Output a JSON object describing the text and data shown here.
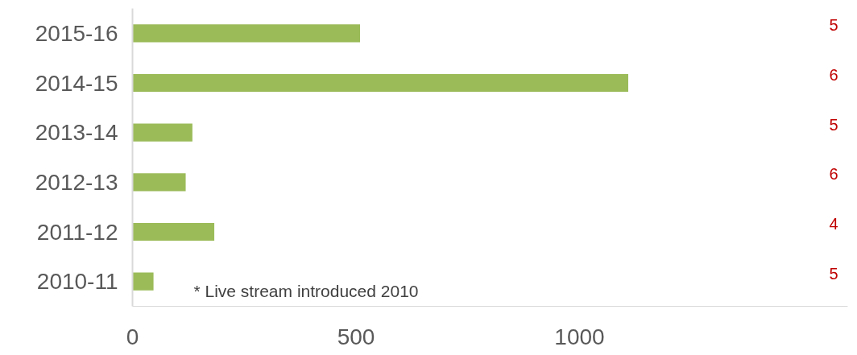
{
  "chart_data": {
    "type": "bar",
    "orientation": "horizontal",
    "categories": [
      "2015-16",
      "2014-15",
      "2013-14",
      "2012-13",
      "2011-12",
      "2010-11"
    ],
    "values": [
      509,
      1109,
      134,
      119,
      183,
      47
    ],
    "color": "#9bbb59",
    "xlim": [
      0,
      1600
    ],
    "xticks": [
      0,
      500,
      1000
    ],
    "grid": false,
    "annotations": [
      "* Live stream introduced 2010",
      "5",
      "6",
      "5",
      "6",
      "4",
      "5"
    ]
  }
}
